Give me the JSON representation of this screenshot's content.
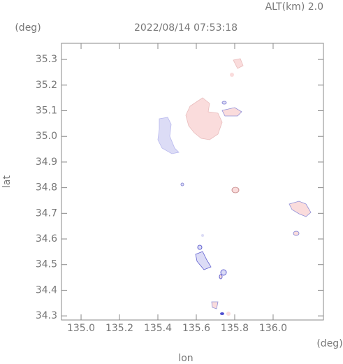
{
  "chart_data": {
    "type": "map",
    "title": "2022/08/14 07:53:18",
    "subtitle": "ALT(km) 2.0",
    "x_label": "lon",
    "y_label": "lat",
    "x_unit": "(deg)",
    "y_unit": "(deg)",
    "xlim": [
      134.898,
      136.262
    ],
    "ylim": [
      34.284,
      35.363
    ],
    "xticks": [
      {
        "value": 135,
        "label": "135.0"
      },
      135.2,
      135.4,
      135.6,
      135.8,
      {
        "value": 136,
        "label": "136.0"
      }
    ],
    "yticks": [
      34.3,
      34.4,
      34.5,
      34.6,
      34.7,
      34.8,
      34.9,
      {
        "value": 35,
        "label": "35.0"
      },
      35.1,
      35.2,
      35.3
    ]
  }
}
